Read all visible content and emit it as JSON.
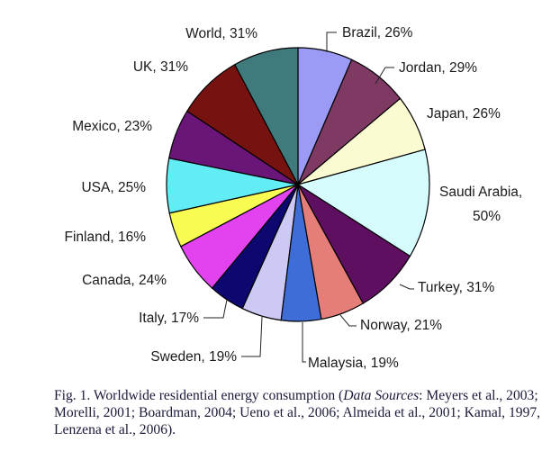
{
  "chart_data": {
    "type": "pie",
    "title": "",
    "unit": "%",
    "slices": [
      {
        "label": "Brazil",
        "value": 26,
        "color": "#9b9bf5"
      },
      {
        "label": "Jordan",
        "value": 29,
        "color": "#7e3a63"
      },
      {
        "label": "Japan",
        "value": 26,
        "color": "#fbfbd2"
      },
      {
        "label": "Saudi Arabia",
        "value": 50,
        "color": "#d6fbfd"
      },
      {
        "label": "Turkey",
        "value": 31,
        "color": "#5e0f60"
      },
      {
        "label": "Norway",
        "value": 21,
        "color": "#e57d78"
      },
      {
        "label": "Malaysia",
        "value": 19,
        "color": "#3f6dd8"
      },
      {
        "label": "Sweden",
        "value": 19,
        "color": "#cccaf5"
      },
      {
        "label": "Italy",
        "value": 17,
        "color": "#0d0870"
      },
      {
        "label": "Canada",
        "value": 24,
        "color": "#e243ee"
      },
      {
        "label": "Finland",
        "value": 16,
        "color": "#fafb52"
      },
      {
        "label": "USA",
        "value": 25,
        "color": "#62ecf3"
      },
      {
        "label": "Mexico",
        "value": 23,
        "color": "#6a1678"
      },
      {
        "label": "UK",
        "value": 31,
        "color": "#761310"
      },
      {
        "label": "World",
        "value": 31,
        "color": "#3f7b7c"
      }
    ],
    "labels": [
      {
        "text": "Brazil, 26%",
        "slice": 0
      },
      {
        "text": "Jordan, 29%",
        "slice": 1
      },
      {
        "text": "Japan, 26%",
        "slice": 2
      },
      {
        "text": "Saudi Arabia,",
        "text2": "50%",
        "slice": 3
      },
      {
        "text": "Turkey, 31%",
        "slice": 4
      },
      {
        "text": "Norway, 21%",
        "slice": 5
      },
      {
        "text": "Malaysia, 19%",
        "slice": 6
      },
      {
        "text": "Sweden, 19%",
        "slice": 7
      },
      {
        "text": "Italy, 17%",
        "slice": 8
      },
      {
        "text": "Canada, 24%",
        "slice": 9
      },
      {
        "text": "Finland, 16%",
        "slice": 10
      },
      {
        "text": "USA, 25%",
        "slice": 11
      },
      {
        "text": "Mexico, 23%",
        "slice": 12
      },
      {
        "text": "UK, 31%",
        "slice": 13
      },
      {
        "text": "World, 31%",
        "slice": 14
      }
    ]
  },
  "caption": {
    "prefix": "Fig. 1.  Worldwide residential energy consumption (",
    "italic": "Data Sources",
    "suffix": ": Meyers et al., 2003; Morelli, 2001; Boardman, 2004; Ueno et al., 2006; Almeida et al., 2001; Kamal, 1997, Lenzena et al., 2006)."
  }
}
